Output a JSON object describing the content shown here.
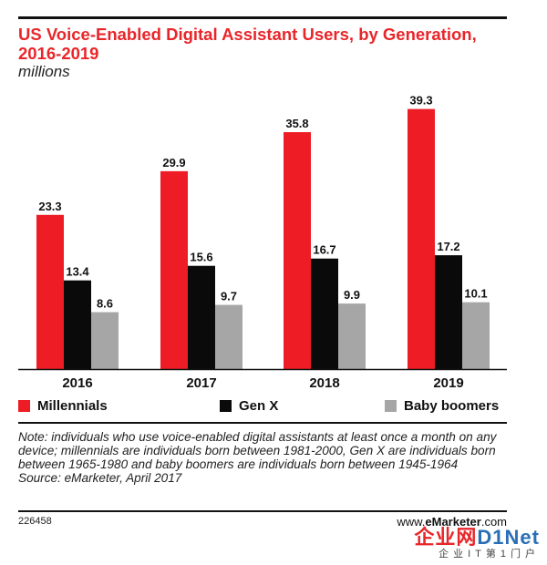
{
  "header": {
    "title": "US Voice-Enabled Digital Assistant Users, by Generation, 2016-2019",
    "subtitle": "millions"
  },
  "chart_data": {
    "type": "bar",
    "title": "US Voice-Enabled Digital Assistant Users, by Generation, 2016-2019",
    "subtitle": "millions",
    "xlabel": "",
    "ylabel": "",
    "categories": [
      "2016",
      "2017",
      "2018",
      "2019"
    ],
    "series": [
      {
        "name": "Millennials",
        "color": "#ee1c25",
        "values": [
          23.3,
          29.9,
          35.8,
          39.3
        ]
      },
      {
        "name": "Gen X",
        "color": "#0a0a0a",
        "values": [
          13.4,
          15.6,
          16.7,
          17.2
        ]
      },
      {
        "name": "Baby boomers",
        "color": "#a6a6a6",
        "values": [
          8.6,
          9.7,
          9.9,
          10.1
        ]
      }
    ],
    "value_labels": [
      [
        "23.3",
        "29.9",
        "35.8",
        "39.3"
      ],
      [
        "13.4",
        "15.6",
        "16.7",
        "17.2"
      ],
      [
        "8.6",
        "9.7",
        "9.9",
        "10.1"
      ]
    ],
    "ylim": [
      0,
      42
    ],
    "grid": false,
    "legend_position": "bottom"
  },
  "legend": {
    "items": [
      {
        "label": "Millennials",
        "color": "#ee1c25"
      },
      {
        "label": "Gen X",
        "color": "#0a0a0a"
      },
      {
        "label": "Baby boomers",
        "color": "#a6a6a6"
      }
    ]
  },
  "footer": {
    "note": "Note: individuals who use voice-enabled digital assistants at least once a month on any device; millennials are individuals born between 1981-2000, Gen X are individuals born between 1965-1980 and baby boomers are individuals born between 1945-1964",
    "source": "Source: eMarketer, April 2017",
    "chart_id": "226458",
    "brand_prefix": "www.",
    "brand_name": "eMarketer",
    "brand_suffix": ".com"
  },
  "watermark": {
    "line1_a": "企业网",
    "line1_b": "D1Net",
    "line2": "企业IT第1门户"
  }
}
